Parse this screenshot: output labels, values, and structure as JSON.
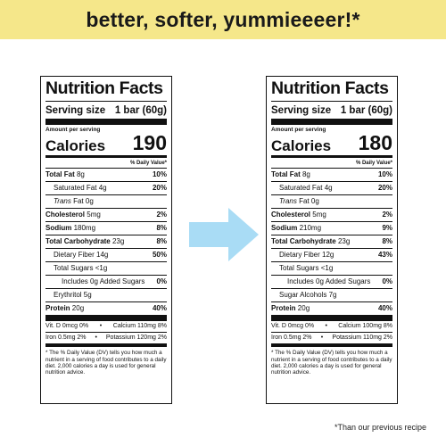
{
  "banner": {
    "text": "better, softer, yummieeeer!*"
  },
  "left": {
    "title": "Nutrition Facts",
    "serving_label": "Serving size",
    "serving_value": "1 bar (60g)",
    "amount_per_serving": "Amount per serving",
    "calories_label": "Calories",
    "calories_value": "190",
    "dv_header": "% Daily Value*",
    "rows": {
      "total_fat": {
        "label": "Total Fat",
        "amount": "8g",
        "pct": "10%"
      },
      "sat_fat": {
        "label": "Saturated Fat",
        "amount": "4g",
        "pct": "20%"
      },
      "trans_fat": {
        "label": "Trans",
        "amount": "Fat 0g"
      },
      "cholesterol": {
        "label": "Cholesterol",
        "amount": "5mg",
        "pct": "2%"
      },
      "sodium": {
        "label": "Sodium",
        "amount": "180mg",
        "pct": "8%"
      },
      "carb": {
        "label": "Total Carbohydrate",
        "amount": "23g",
        "pct": "8%"
      },
      "fiber": {
        "label": "Dietary Fiber",
        "amount": "14g",
        "pct": "50%"
      },
      "sugars": {
        "label": "Total Sugars",
        "amount": "<1g"
      },
      "added_sugars": {
        "label": "Includes 0g Added Sugars",
        "pct": "0%"
      },
      "extra": {
        "label": "Erythritol",
        "amount": "5g"
      },
      "protein": {
        "label": "Protein",
        "amount": "20g",
        "pct": "40%"
      }
    },
    "vit_row1_left": "Vit. D 0mcg 0%",
    "vit_row1_right": "Calcium 110mg 8%",
    "vit_row2_left": "Iron 0.5mg 2%",
    "vit_row2_right": "Potassium 120mg 2%",
    "footnote": "* The % Daily Value (DV) tells you how much a nutrient in a serving of food contributes to a daily diet. 2,000 calories a day is used for general nutrition advice."
  },
  "right": {
    "title": "Nutrition Facts",
    "serving_label": "Serving size",
    "serving_value": "1 bar (60g)",
    "amount_per_serving": "Amount per serving",
    "calories_label": "Calories",
    "calories_value": "180",
    "dv_header": "% Daily Value*",
    "rows": {
      "total_fat": {
        "label": "Total Fat",
        "amount": "8g",
        "pct": "10%"
      },
      "sat_fat": {
        "label": "Saturated Fat",
        "amount": "4g",
        "pct": "20%"
      },
      "trans_fat": {
        "label": "Trans",
        "amount": "Fat 0g"
      },
      "cholesterol": {
        "label": "Cholesterol",
        "amount": "5mg",
        "pct": "2%"
      },
      "sodium": {
        "label": "Sodium",
        "amount": "210mg",
        "pct": "9%"
      },
      "carb": {
        "label": "Total Carbohydrate",
        "amount": "23g",
        "pct": "8%"
      },
      "fiber": {
        "label": "Dietary Fiber",
        "amount": "12g",
        "pct": "43%"
      },
      "sugars": {
        "label": "Total Sugars",
        "amount": "<1g"
      },
      "added_sugars": {
        "label": "Includes 0g Added Sugars",
        "pct": "0%"
      },
      "extra": {
        "label": "Sugar Alcohols",
        "amount": "7g"
      },
      "protein": {
        "label": "Protein",
        "amount": "20g",
        "pct": "40%"
      }
    },
    "vit_row1_left": "Vit. D 0mcg 0%",
    "vit_row1_right": "Calcium 100mg 8%",
    "vit_row2_left": "Iron 0.5mg 2%",
    "vit_row2_right": "Potassium 110mg 2%",
    "footnote": "* The % Daily Value (DV) tells you how much a nutrient in a serving of food contributes to a daily diet. 2,000 calories a day is used for general nutrition advice."
  },
  "footnote": "*Than our previous recipe",
  "colors": {
    "banner": "#f5e78a",
    "arrow": "#a9dcf5"
  },
  "icons": {
    "arrow": "right-arrow-icon"
  }
}
